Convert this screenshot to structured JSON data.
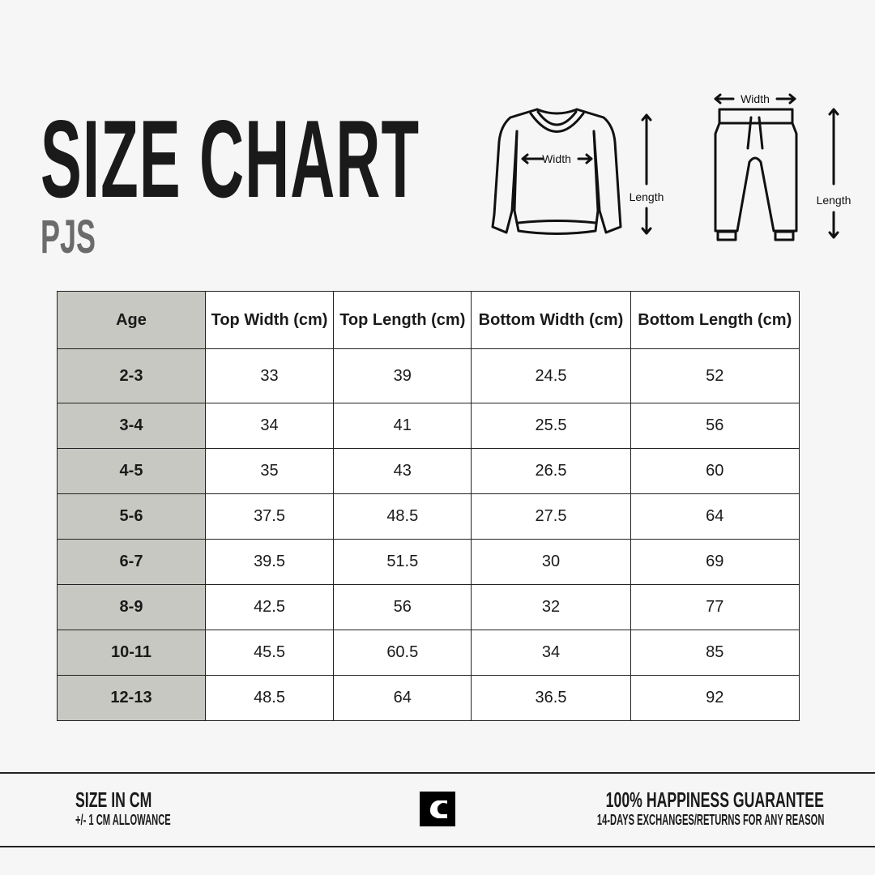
{
  "header": {
    "title": "SIZE CHART",
    "subtitle": "PJS"
  },
  "illustration": {
    "top_width": "Width",
    "top_length": "Length",
    "bottom_width": "Width",
    "bottom_length": "Length"
  },
  "table": {
    "columns": [
      "Age",
      "Top Width (cm)",
      "Top Length (cm)",
      "Bottom Width (cm)",
      "Bottom Length (cm)"
    ],
    "rows": [
      [
        "2-3",
        "33",
        "39",
        "24.5",
        "52"
      ],
      [
        "3-4",
        "34",
        "41",
        "25.5",
        "56"
      ],
      [
        "4-5",
        "35",
        "43",
        "26.5",
        "60"
      ],
      [
        "5-6",
        "37.5",
        "48.5",
        "27.5",
        "64"
      ],
      [
        "6-7",
        "39.5",
        "51.5",
        "30",
        "69"
      ],
      [
        "8-9",
        "42.5",
        "56",
        "32",
        "77"
      ],
      [
        "10-11",
        "45.5",
        "60.5",
        "34",
        "85"
      ],
      [
        "12-13",
        "48.5",
        "64",
        "36.5",
        "92"
      ]
    ]
  },
  "footer": {
    "left_title": "SIZE IN CM",
    "left_sub": "+/- 1 CM ALLOWANCE",
    "right_title": "100% HAPPINESS GUARANTEE",
    "right_sub": "14-DAYS EXCHANGES/RETURNS FOR ANY REASON",
    "logo": "C"
  },
  "colors": {
    "age_column": "#c8c8c2",
    "background": "#f6f6f6",
    "subtitle": "#6b6b6b"
  }
}
